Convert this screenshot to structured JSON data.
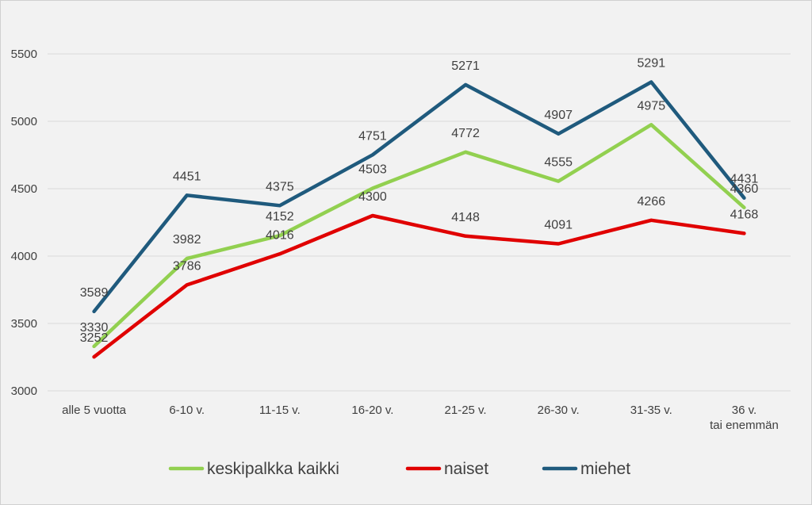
{
  "chart_data": {
    "type": "line",
    "categories": [
      "alle 5 vuotta",
      "6-10 v.",
      "11-15 v.",
      "16-20 v.",
      "21-25 v.",
      "26-30 v.",
      "31-35 v.",
      "36 v. tai enemmän"
    ],
    "series": [
      {
        "name": "keskipalkka kaikki",
        "color": "#92d050",
        "values": [
          3330,
          3982,
          4152,
          4503,
          4772,
          4555,
          4975,
          4360
        ]
      },
      {
        "name": "naiset",
        "color": "#e00000",
        "values": [
          3252,
          3786,
          4016,
          4300,
          4148,
          4091,
          4266,
          4168
        ]
      },
      {
        "name": "miehet",
        "color": "#1f5a7d",
        "values": [
          3589,
          4451,
          4375,
          4751,
          5271,
          4907,
          5291,
          4431
        ]
      }
    ],
    "yticks": [
      3000,
      3500,
      4000,
      4500,
      5000,
      5500
    ],
    "ylim": [
      3000,
      5750
    ],
    "grid": true,
    "legend": "bottom",
    "title": "",
    "xlabel": "",
    "ylabel": ""
  }
}
